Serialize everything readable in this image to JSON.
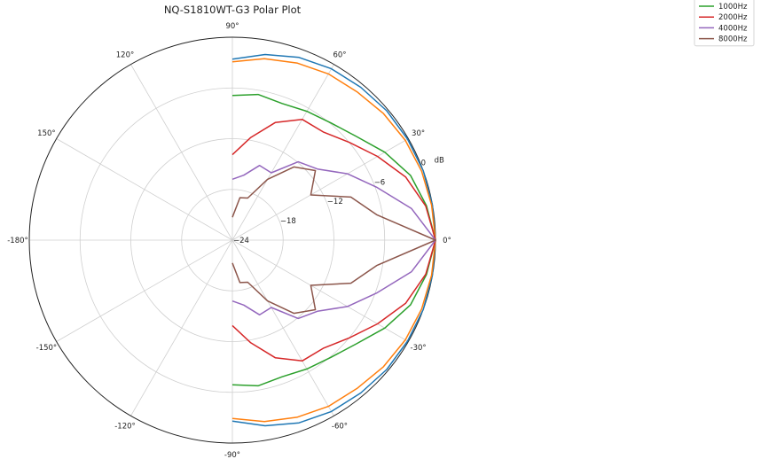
{
  "chart_data": {
    "type": "polar-line",
    "title": "NQ-S1810WT-G3 Polar Plot",
    "radial_unit": "dB",
    "radial_range": [
      -24,
      0
    ],
    "radial_ticks": [
      {
        "value": -24,
        "label": "−24"
      },
      {
        "value": -18,
        "label": "−18"
      },
      {
        "value": -12,
        "label": "−12"
      },
      {
        "value": -6,
        "label": "−6"
      },
      {
        "value": 0,
        "label": "0"
      }
    ],
    "angle_ticks": [
      {
        "angle": 0,
        "label": "0°"
      },
      {
        "angle": 30,
        "label": "30°"
      },
      {
        "angle": 60,
        "label": "60°"
      },
      {
        "angle": 90,
        "label": "90°"
      },
      {
        "angle": 120,
        "label": "120°"
      },
      {
        "angle": 150,
        "label": "150°"
      },
      {
        "angle": 180,
        "label": "-180°"
      },
      {
        "angle": 210,
        "label": "-150°"
      },
      {
        "angle": 240,
        "label": "-120°"
      },
      {
        "angle": 270,
        "label": "-90°"
      },
      {
        "angle": 300,
        "label": "-60°"
      },
      {
        "angle": 330,
        "label": "-30°"
      }
    ],
    "grid": true,
    "legend_position": "top-right",
    "angles": [
      -90,
      -80,
      -70,
      -60,
      -50,
      -40,
      -30,
      -20,
      -10,
      0,
      10,
      20,
      30,
      40,
      50,
      60,
      70,
      80,
      90
    ],
    "series": [
      {
        "name": "",
        "color": "#1f77b4",
        "values": [
          -2.6,
          -1.7,
          -1.0,
          -0.6,
          -0.4,
          -0.2,
          -0.1,
          0.0,
          0.0,
          0.0,
          0.0,
          0.0,
          -0.1,
          -0.2,
          -0.4,
          -0.6,
          -1.0,
          -1.7,
          -2.6
        ]
      },
      {
        "name": "",
        "color": "#ff7f0e",
        "values": [
          -2.9,
          -2.2,
          -1.7,
          -1.3,
          -1.1,
          -0.7,
          -0.4,
          -0.2,
          -0.1,
          0.0,
          -0.1,
          -0.2,
          -0.4,
          -0.7,
          -1.1,
          -1.3,
          -1.7,
          -2.2,
          -2.9
        ]
      },
      {
        "name": "1000Hz",
        "color": "#2ca02c",
        "values": [
          -6.9,
          -6.5,
          -6.8,
          -6.4,
          -5.9,
          -4.9,
          -3.2,
          -1.6,
          -0.7,
          0.0,
          -0.7,
          -1.6,
          -3.2,
          -4.9,
          -5.9,
          -6.4,
          -6.8,
          -6.5,
          -6.9
        ]
      },
      {
        "name": "2000Hz",
        "color": "#d62728",
        "values": [
          -13.9,
          -11.7,
          -9.2,
          -7.5,
          -7.3,
          -6.0,
          -4.2,
          -2.2,
          -0.8,
          0.0,
          -0.8,
          -2.2,
          -4.2,
          -6.0,
          -7.3,
          -7.5,
          -9.2,
          -11.7,
          -13.9
        ]
      },
      {
        "name": "4000Hz",
        "color": "#9467bd",
        "values": [
          -16.8,
          -16.2,
          -14.6,
          -14.8,
          -11.9,
          -10.9,
          -8.3,
          -5.8,
          -2.5,
          0.0,
          -2.5,
          -5.8,
          -8.3,
          -10.9,
          -11.9,
          -14.8,
          -14.6,
          -16.2,
          -16.8
        ]
      },
      {
        "name": "8000Hz",
        "color": "#8c564b",
        "values": [
          -21.3,
          -18.9,
          -18.7,
          -15.7,
          -12.7,
          -11.2,
          -13.3,
          -9.1,
          -6.7,
          0.0,
          -6.7,
          -9.1,
          -13.3,
          -11.2,
          -12.7,
          -15.7,
          -18.7,
          -18.9,
          -21.3
        ]
      }
    ]
  }
}
